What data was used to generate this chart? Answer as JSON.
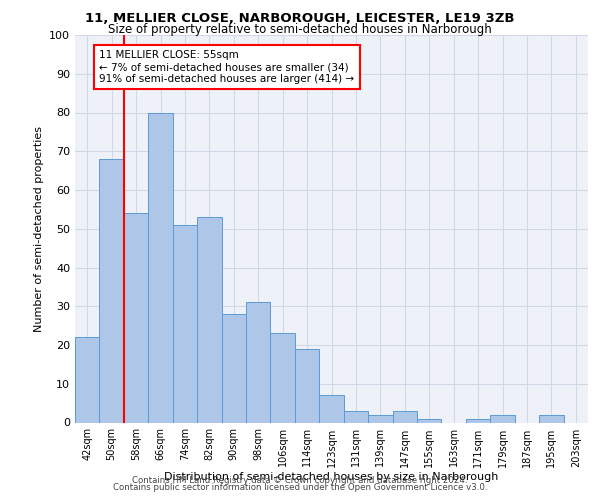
{
  "title": "11, MELLIER CLOSE, NARBOROUGH, LEICESTER, LE19 3ZB",
  "subtitle": "Size of property relative to semi-detached houses in Narborough",
  "xlabel": "Distribution of semi-detached houses by size in Narborough",
  "ylabel": "Number of semi-detached properties",
  "categories": [
    "42sqm",
    "50sqm",
    "58sqm",
    "66sqm",
    "74sqm",
    "82sqm",
    "90sqm",
    "98sqm",
    "106sqm",
    "114sqm",
    "123sqm",
    "131sqm",
    "139sqm",
    "147sqm",
    "155sqm",
    "163sqm",
    "171sqm",
    "179sqm",
    "187sqm",
    "195sqm",
    "203sqm"
  ],
  "values": [
    22,
    68,
    54,
    80,
    51,
    53,
    28,
    31,
    23,
    19,
    7,
    3,
    2,
    3,
    1,
    0,
    1,
    2,
    0,
    2,
    0
  ],
  "bar_color": "#aec6e8",
  "bar_edge_color": "#5b9bd5",
  "highlight_label": "11 MELLIER CLOSE: 55sqm",
  "highlight_smaller": "← 7% of semi-detached houses are smaller (34)",
  "highlight_larger": "91% of semi-detached houses are larger (414) →",
  "redline_x": 1.5,
  "ylim": [
    0,
    100
  ],
  "yticks": [
    0,
    10,
    20,
    30,
    40,
    50,
    60,
    70,
    80,
    90,
    100
  ],
  "grid_color": "#d0d8e8",
  "background_color": "#eef2f8",
  "footer1": "Contains HM Land Registry data © Crown copyright and database right 2024.",
  "footer2": "Contains public sector information licensed under the Open Government Licence v3.0."
}
